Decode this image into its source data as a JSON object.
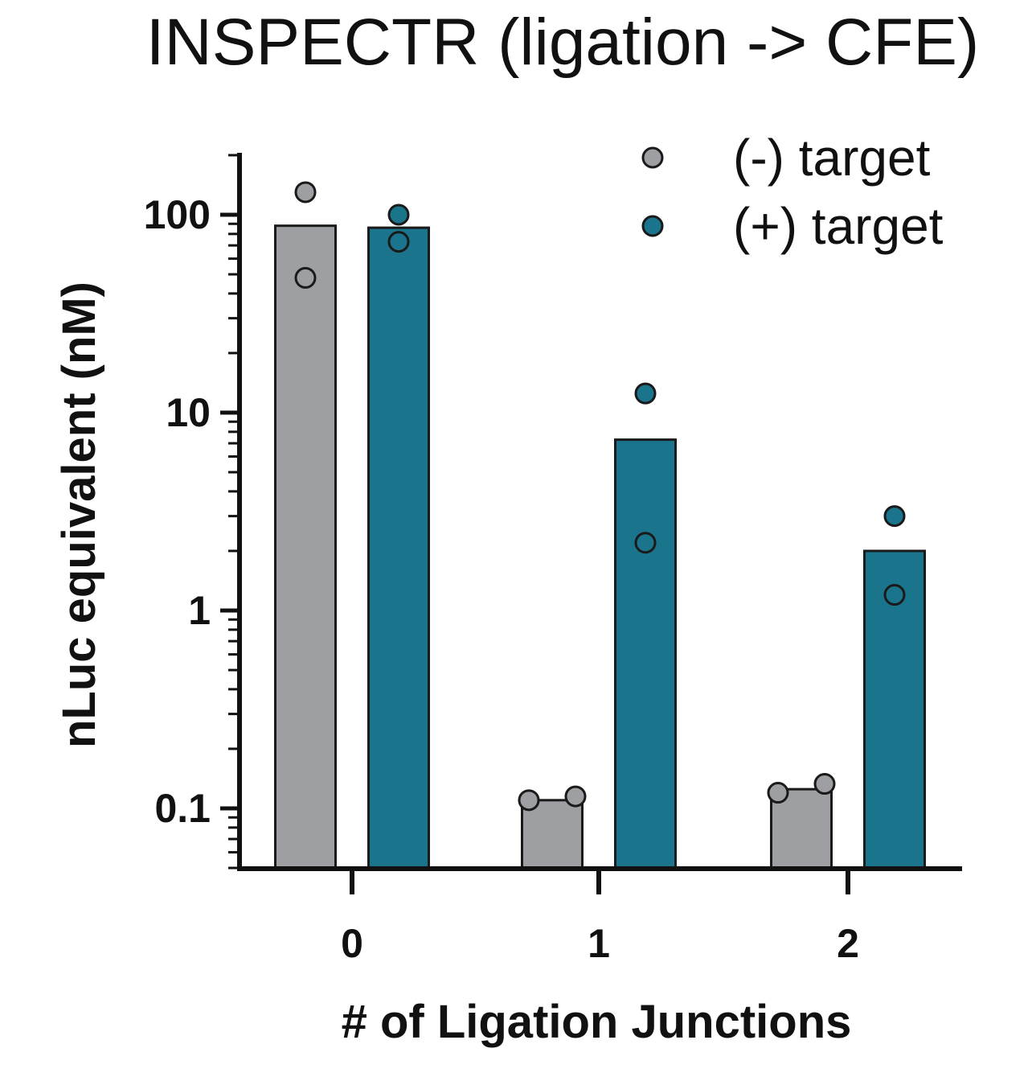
{
  "chart_data": {
    "type": "bar",
    "title": "INSPECTR (ligation -> CFE)",
    "xlabel": "# of  Ligation Junctions",
    "ylabel": "nLuc  equivalent (nM)",
    "yscale": "log",
    "ylim": [
      0.05,
      200
    ],
    "yticks": [
      {
        "value": 100,
        "label": "100"
      },
      {
        "value": 10,
        "label": "10"
      },
      {
        "value": 1,
        "label": "1"
      },
      {
        "value": 0.1,
        "label": "0.1"
      }
    ],
    "categories": [
      "0",
      "1",
      "2"
    ],
    "legend_position": "top-right",
    "grid": false,
    "series": [
      {
        "name": "(-) target",
        "color": "#9d9fa2",
        "values": [
          88,
          0.11,
          0.125
        ],
        "points": [
          [
            130,
            48
          ],
          [
            0.11,
            0.115
          ],
          [
            0.12,
            0.133
          ]
        ]
      },
      {
        "name": "(+) target",
        "color": "#1a748c",
        "values": [
          86,
          7.3,
          2.0
        ],
        "points": [
          [
            100,
            73
          ],
          [
            12.5,
            2.2
          ],
          [
            3.0,
            1.2
          ]
        ]
      }
    ]
  }
}
